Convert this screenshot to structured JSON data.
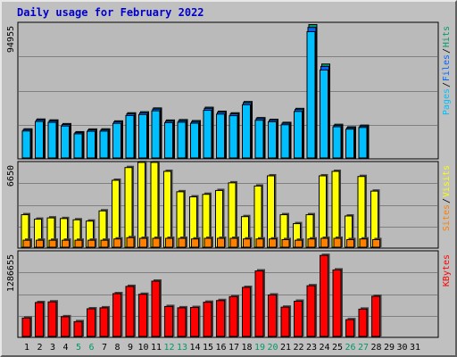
{
  "title": "Daily usage for February 2022",
  "colors": {
    "background": "#c0c0c0",
    "plot_background": "#bababa",
    "pages": "#00bfff",
    "files": "#0066ff",
    "hits": "#009966",
    "visits": "#ffff00",
    "sites": "#ff8000",
    "kbytes": "#ff0000",
    "title": "#0000cc",
    "weekday": "#000000",
    "weekend": "#009966"
  },
  "chart_data": [
    {
      "type": "bar",
      "name": "pages-files-hits",
      "ymax_label": "94955",
      "ymax": 94955,
      "legend": [
        "Pages",
        "/",
        "Files",
        "/",
        "Hits"
      ],
      "series": [
        {
          "name": "Hits",
          "values": [
            20600,
            27500,
            26900,
            24300,
            18600,
            20500,
            20600,
            26200,
            31900,
            32600,
            35300,
            26800,
            27100,
            26400,
            35800,
            33000,
            31900,
            39800,
            28500,
            27300,
            25200,
            35000,
            94000,
            66200,
            23800,
            22000,
            23200,
            0,
            0,
            0,
            0
          ]
        },
        {
          "name": "Files",
          "values": [
            20000,
            26800,
            26200,
            23600,
            17900,
            19800,
            19900,
            25500,
            31100,
            31800,
            34500,
            26000,
            26300,
            25600,
            35000,
            32200,
            31100,
            39000,
            27800,
            26600,
            24500,
            34200,
            92000,
            64500,
            23000,
            21300,
            22500,
            0,
            0,
            0,
            0
          ]
        },
        {
          "name": "Pages",
          "values": [
            19000,
            25700,
            25100,
            22500,
            17000,
            18800,
            18900,
            24400,
            29900,
            30600,
            33200,
            24900,
            25200,
            24500,
            33600,
            30900,
            29800,
            37500,
            26600,
            25500,
            23400,
            32800,
            89000,
            62000,
            22000,
            20300,
            21500,
            0,
            0,
            0,
            0
          ]
        }
      ]
    },
    {
      "type": "bar",
      "name": "visits-sites",
      "ymax_label": "6650",
      "ymax": 6650,
      "legend": [
        "Sites",
        "/",
        "Visits"
      ],
      "series": [
        {
          "name": "Visits",
          "values": [
            2550,
            2200,
            2300,
            2250,
            2150,
            2050,
            2850,
            5250,
            6250,
            6650,
            6650,
            5950,
            4350,
            3950,
            4150,
            4450,
            5050,
            2400,
            4800,
            5600,
            2550,
            1850,
            2550,
            5600,
            5950,
            2450,
            5550,
            4400,
            0,
            0,
            0
          ]
        },
        {
          "name": "Sites",
          "values": [
            550,
            550,
            550,
            550,
            550,
            550,
            550,
            650,
            750,
            700,
            700,
            700,
            700,
            650,
            700,
            700,
            700,
            650,
            650,
            650,
            600,
            550,
            650,
            700,
            700,
            600,
            650,
            600,
            0,
            0,
            0
          ]
        }
      ]
    },
    {
      "type": "bar",
      "name": "kbytes",
      "ymax_label": "1286655",
      "ymax": 1286655,
      "legend": [
        "KBytes"
      ],
      "series": [
        {
          "name": "KBytes",
          "values": [
            280000,
            515000,
            525000,
            300000,
            225000,
            420000,
            435000,
            650000,
            760000,
            640000,
            840000,
            455000,
            435000,
            440000,
            520000,
            545000,
            605000,
            745000,
            995000,
            630000,
            445000,
            535000,
            770000,
            1230000,
            1010000,
            255000,
            415000,
            610000,
            0,
            0,
            0
          ]
        }
      ]
    }
  ],
  "days": [
    "1",
    "2",
    "3",
    "4",
    "5",
    "6",
    "7",
    "8",
    "9",
    "10",
    "11",
    "12",
    "13",
    "14",
    "15",
    "16",
    "17",
    "18",
    "19",
    "20",
    "21",
    "22",
    "23",
    "24",
    "25",
    "26",
    "27",
    "28",
    "29",
    "30",
    "31"
  ],
  "weekend_days": [
    5,
    6,
    12,
    13,
    19,
    20,
    26,
    27
  ]
}
